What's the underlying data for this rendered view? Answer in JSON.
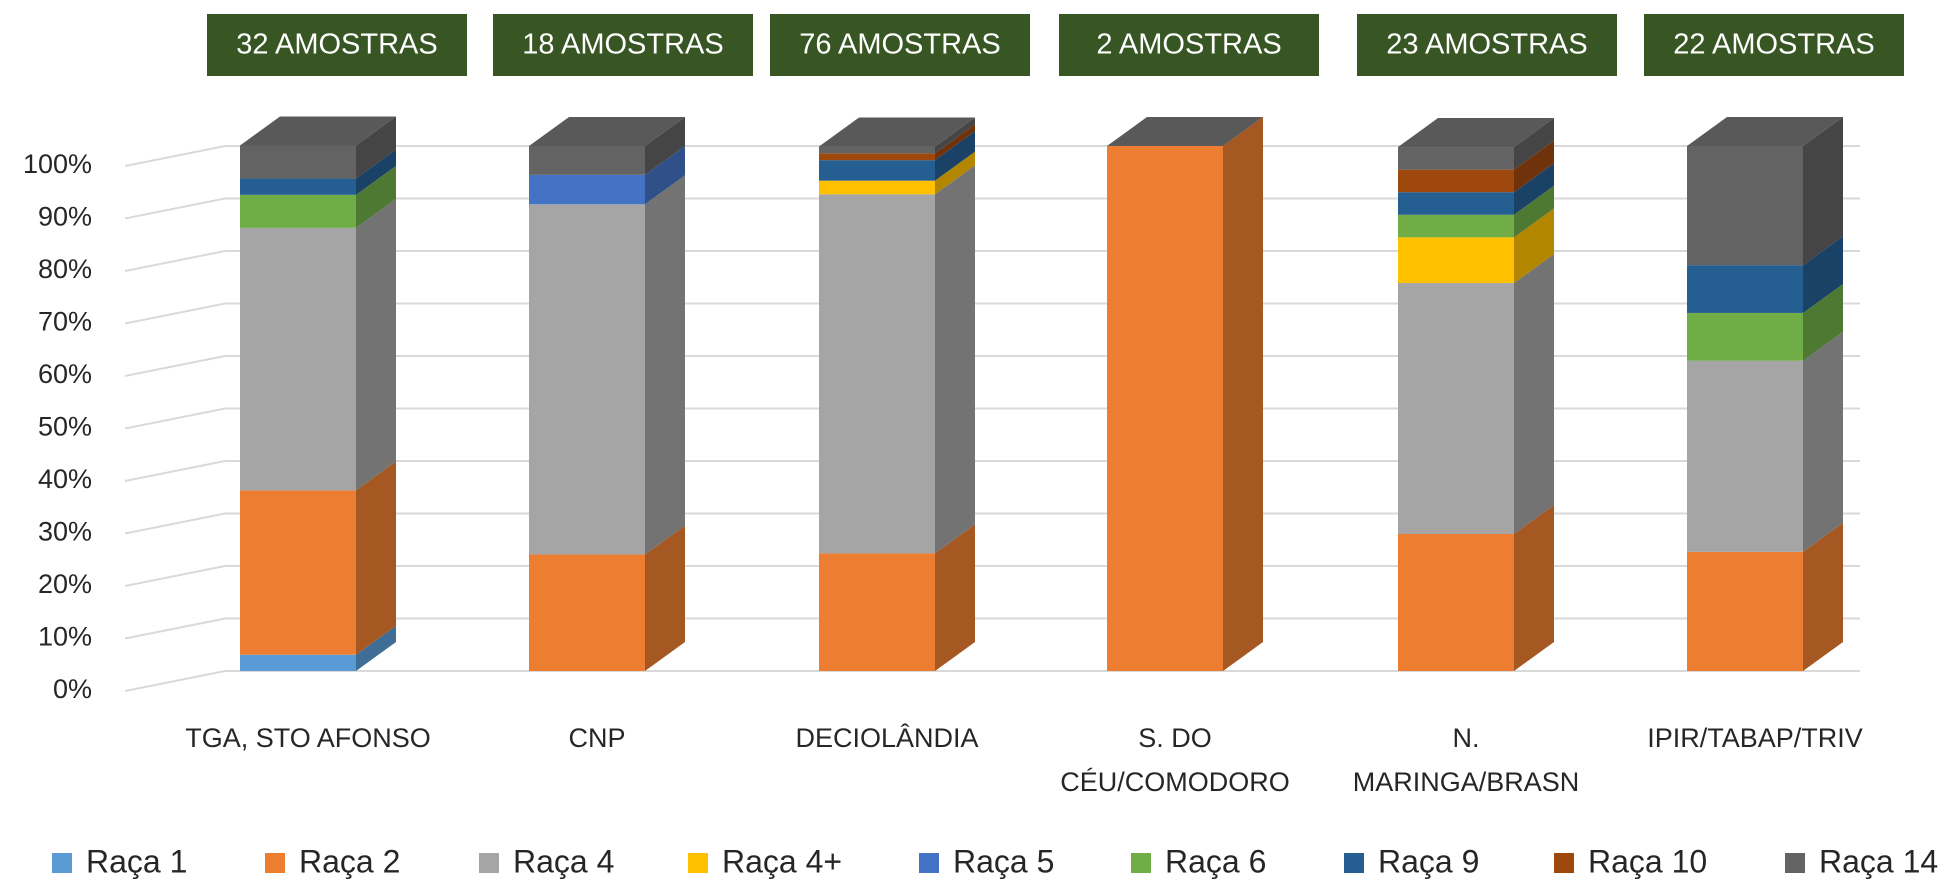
{
  "chart_data": {
    "type": "bar3d_stacked_percent",
    "categories": [
      "TGA, STO AFONSO",
      "CNP",
      "DECIOLÂNDIA",
      "S. DO\nCÉU/COMODORO",
      "N.\nMARINGA/BRASN",
      "IPIR/TABAP/TRIV"
    ],
    "annotations": [
      "32 AMOSTRAS",
      "18 AMOSTRAS",
      "76 AMOSTRAS",
      "2 AMOSTRAS",
      "23 AMOSTRAS",
      "22 AMOSTRAS"
    ],
    "series": [
      {
        "name": "Raça 1",
        "color": "#5b9bd5",
        "values": [
          3.1,
          0,
          0,
          0,
          0,
          0
        ]
      },
      {
        "name": "Raça 2",
        "color": "#ed7d31",
        "values": [
          31.3,
          22.2,
          22.4,
          100,
          26.1,
          22.7
        ]
      },
      {
        "name": "Raça 4",
        "color": "#a5a5a5",
        "values": [
          50,
          66.7,
          68.4,
          0,
          47.8,
          36.4
        ]
      },
      {
        "name": "Raça 4+",
        "color": "#ffc000",
        "values": [
          0,
          0,
          2.6,
          0,
          8.7,
          0
        ]
      },
      {
        "name": "Raça 5",
        "color": "#4472c4",
        "values": [
          0,
          5.6,
          0,
          0,
          0,
          0
        ]
      },
      {
        "name": "Raça 6",
        "color": "#70ad47",
        "values": [
          6.3,
          0,
          0,
          0,
          4.3,
          9.1
        ]
      },
      {
        "name": "Raça 9",
        "color": "#255e91",
        "values": [
          3.1,
          0,
          3.9,
          0,
          4.3,
          9.1
        ]
      },
      {
        "name": "Raça 10",
        "color": "#9e480e",
        "values": [
          0,
          0,
          1.3,
          0,
          4.3,
          0
        ]
      },
      {
        "name": "Raça 14",
        "color": "#636363",
        "values": [
          6.3,
          5.5,
          1.3,
          0,
          4.3,
          22.7
        ]
      }
    ],
    "ylim": [
      0,
      100
    ],
    "yticks": [
      {
        "value": 0,
        "label": "0%"
      },
      {
        "value": 10,
        "label": "10%"
      },
      {
        "value": 20,
        "label": "20%"
      },
      {
        "value": 30,
        "label": "30%"
      },
      {
        "value": 40,
        "label": "40%"
      },
      {
        "value": 50,
        "label": "50%"
      },
      {
        "value": 60,
        "label": "60%"
      },
      {
        "value": 70,
        "label": "70%"
      },
      {
        "value": 80,
        "label": "80%"
      },
      {
        "value": 90,
        "label": "90%"
      },
      {
        "value": 100,
        "label": "100%"
      }
    ],
    "grid": true,
    "legend": "bottom",
    "annotation_color": "#375623"
  }
}
